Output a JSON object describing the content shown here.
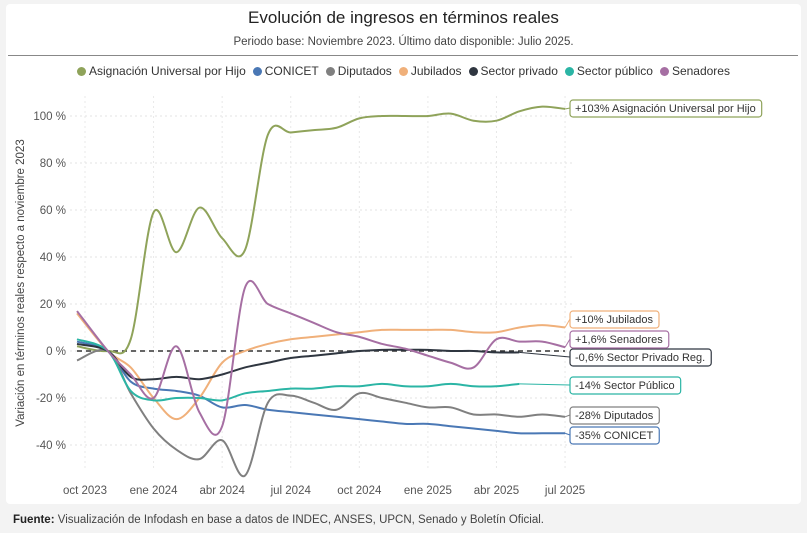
{
  "header": {
    "title": "Evolución de ingresos en términos reales",
    "subtitle": "Periodo base: Noviembre 2023. Último dato disponible: Julio 2025."
  },
  "footer": {
    "source_label": "Fuente:",
    "source_text": " Visualización de Infodash en base a datos de INDEC, ANSES, UPCN, Senado y Boletín Oficial."
  },
  "chart_data": {
    "type": "line",
    "title": "Evolución de ingresos en términos reales",
    "subtitle": "Periodo base: Noviembre 2023. Último dato disponible: Julio 2025.",
    "xlabel": "",
    "ylabel": "Variación en términos reales respecto a noviembre 2023",
    "ylim": [
      -52,
      110
    ],
    "yticks": [
      -40,
      -20,
      0,
      20,
      40,
      60,
      80,
      100
    ],
    "ytick_labels": [
      "-40 %",
      "-20 %",
      "0 %",
      "20 %",
      "40 %",
      "60 %",
      "80 %",
      "100 %"
    ],
    "x": [
      "oct 2023",
      "nov 2023",
      "dic 2023",
      "ene 2024",
      "feb 2024",
      "mar 2024",
      "abr 2024",
      "may 2024",
      "jun 2024",
      "jul 2024",
      "ago 2024",
      "sep 2024",
      "oct 2024",
      "nov 2024",
      "dic 2024",
      "ene 2025",
      "feb 2025",
      "mar 2025",
      "abr 2025",
      "may 2025",
      "jun 2025",
      "jul 2025"
    ],
    "xtick_labels": [
      "oct 2023",
      "ene 2024",
      "abr 2024",
      "jul 2024",
      "oct 2024",
      "ene 2025",
      "abr 2025",
      "jul 2025"
    ],
    "grid": true,
    "reference_line": {
      "y": 0,
      "style": "dashed"
    },
    "legend_position": "top-center",
    "series": [
      {
        "name": "Asignación Universal por Hijo",
        "color": "#8fa35a",
        "values": [
          2,
          0,
          5,
          59,
          42,
          61,
          48,
          43,
          92,
          93,
          94,
          95,
          99,
          100,
          100,
          100,
          101,
          98,
          98,
          102,
          104,
          103
        ],
        "end_label": "+103% Asignación Universal por Hijo"
      },
      {
        "name": "CONICET",
        "color": "#4a78b5",
        "values": [
          4,
          0,
          -13,
          -16,
          -17,
          -19,
          -24,
          -23,
          -25,
          -26,
          -27,
          -28,
          -29,
          -30,
          -31,
          -31,
          -32,
          -33,
          -34,
          -35,
          -35,
          -35
        ],
        "end_label": "-35% CONICET"
      },
      {
        "name": "Diputados",
        "color": "#808080",
        "values": [
          -4,
          0,
          -18,
          -33,
          -42,
          -46,
          -38,
          -53,
          -22,
          -19,
          -22,
          -25,
          -18,
          -20,
          -22,
          -24,
          -24,
          -27,
          -27,
          -28,
          -27,
          -28
        ],
        "end_label": "-28% Diputados"
      },
      {
        "name": "Jubilados",
        "color": "#f0b07a",
        "values": [
          16,
          0,
          -7,
          -20,
          -29,
          -20,
          -5,
          0,
          3,
          5,
          6,
          7,
          8,
          9,
          9,
          9,
          9,
          8,
          8,
          10,
          11,
          10
        ],
        "end_label": "+10% Jubilados"
      },
      {
        "name": "Sector privado",
        "color": "#2f3640",
        "values": [
          3,
          0,
          -11,
          -12,
          -11,
          -12,
          -10,
          -7,
          -5,
          -3,
          -2,
          -1,
          0,
          0.5,
          0.5,
          0.5,
          0,
          0,
          -0.6,
          -0.6,
          -0.6,
          -0.6
        ],
        "end_label": "-0,6% Sector Privado Reg."
      },
      {
        "name": "Sector público",
        "color": "#2bb5a5",
        "values": [
          5,
          0,
          -17,
          -21,
          -20,
          -20,
          -21,
          -18,
          -17,
          -16,
          -16,
          -15,
          -15,
          -14,
          -15,
          -15,
          -14,
          -15,
          -15,
          -14,
          -14,
          -14
        ],
        "end_label": "-14% Sector Público"
      },
      {
        "name": "Senadores",
        "color": "#a66fa3",
        "values": [
          17,
          0,
          -10,
          -20,
          2,
          -26,
          -32,
          27,
          20,
          16,
          12,
          8,
          6,
          3,
          1,
          -2,
          -5,
          -7,
          5,
          4,
          4,
          1.6
        ],
        "end_label": "+1,6% Senadores"
      }
    ]
  }
}
